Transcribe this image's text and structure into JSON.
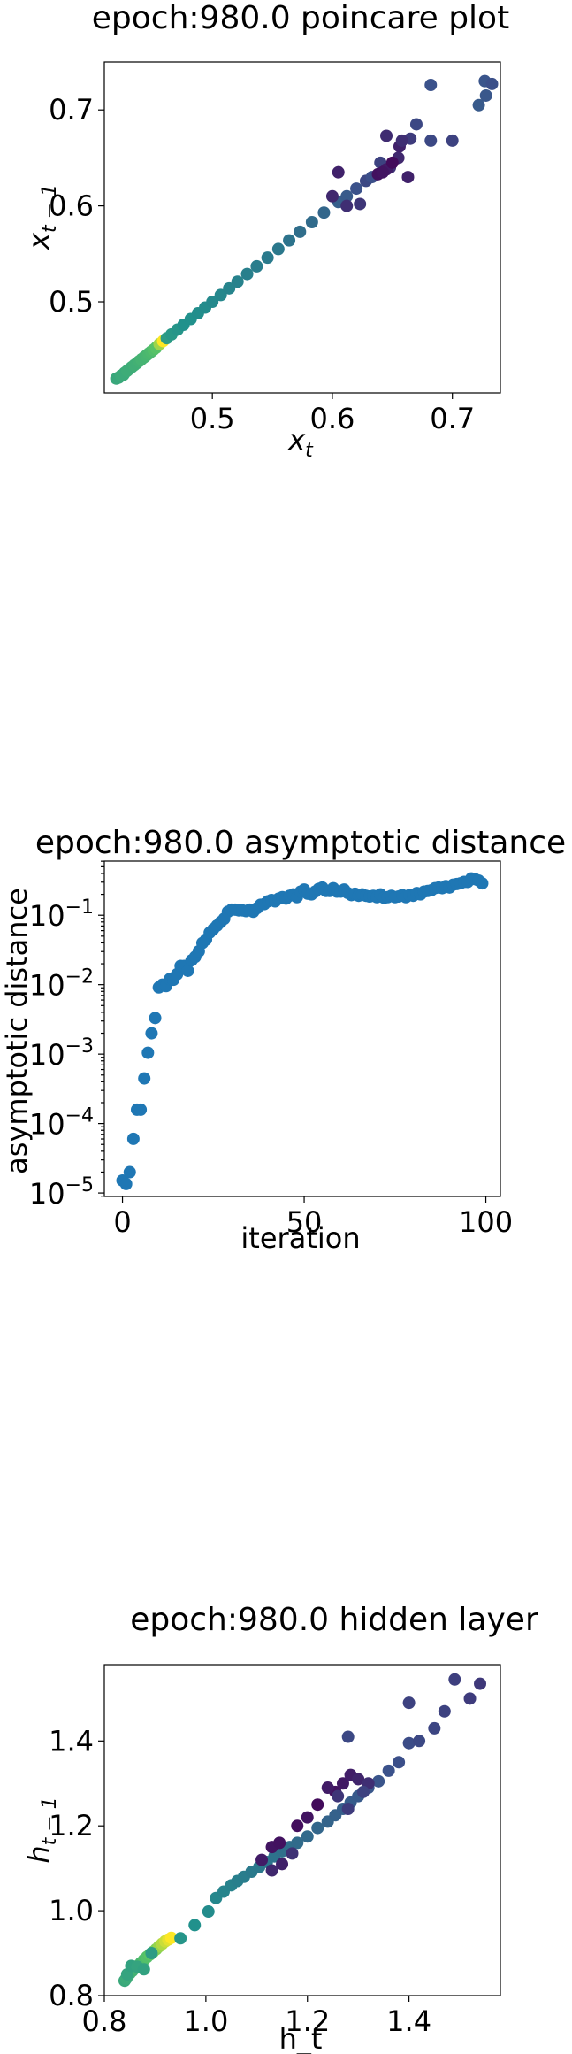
{
  "chart_data": [
    {
      "type": "scatter",
      "title": "epoch:980.0 poincare plot",
      "xlabel_base": "x",
      "xlabel_sub": "t",
      "ylabel_base": "x",
      "ylabel_sub": "t − 1",
      "xlim": [
        0.41,
        0.74
      ],
      "ylim": [
        0.405,
        0.75
      ],
      "xticks": [
        0.5,
        0.6,
        0.7
      ],
      "xtick_labels": [
        "0.5",
        "0.6",
        "0.7"
      ],
      "yticks": [
        0.5,
        0.6,
        0.7
      ],
      "ytick_labels": [
        "0.5",
        "0.6",
        "0.7"
      ],
      "colormap": [
        "#440154",
        "#3b528b",
        "#21918c",
        "#5ec962",
        "#fde725"
      ],
      "points": [
        [
          0.42,
          0.42,
          0.6
        ],
        [
          0.422,
          0.421,
          0.6
        ],
        [
          0.424,
          0.423,
          0.61
        ],
        [
          0.426,
          0.424,
          0.61
        ],
        [
          0.427,
          0.426,
          0.61
        ],
        [
          0.429,
          0.428,
          0.62
        ],
        [
          0.431,
          0.43,
          0.62
        ],
        [
          0.433,
          0.432,
          0.62
        ],
        [
          0.435,
          0.434,
          0.63
        ],
        [
          0.437,
          0.436,
          0.63
        ],
        [
          0.439,
          0.438,
          0.64
        ],
        [
          0.441,
          0.44,
          0.65
        ],
        [
          0.443,
          0.442,
          0.65
        ],
        [
          0.445,
          0.444,
          0.66
        ],
        [
          0.447,
          0.446,
          0.67
        ],
        [
          0.449,
          0.448,
          0.68
        ],
        [
          0.451,
          0.45,
          0.7
        ],
        [
          0.453,
          0.452,
          0.72
        ],
        [
          0.456,
          0.456,
          0.85
        ],
        [
          0.459,
          0.459,
          1.0
        ],
        [
          0.462,
          0.462,
          0.55
        ],
        [
          0.466,
          0.466,
          0.53
        ],
        [
          0.471,
          0.471,
          0.52
        ],
        [
          0.476,
          0.476,
          0.5
        ],
        [
          0.482,
          0.482,
          0.5
        ],
        [
          0.488,
          0.488,
          0.49
        ],
        [
          0.494,
          0.494,
          0.48
        ],
        [
          0.5,
          0.5,
          0.47
        ],
        [
          0.507,
          0.507,
          0.46
        ],
        [
          0.514,
          0.514,
          0.45
        ],
        [
          0.521,
          0.521,
          0.44
        ],
        [
          0.529,
          0.529,
          0.43
        ],
        [
          0.537,
          0.537,
          0.42
        ],
        [
          0.546,
          0.546,
          0.41
        ],
        [
          0.555,
          0.555,
          0.4
        ],
        [
          0.564,
          0.564,
          0.38
        ],
        [
          0.573,
          0.573,
          0.36
        ],
        [
          0.583,
          0.583,
          0.35
        ],
        [
          0.593,
          0.593,
          0.33
        ],
        [
          0.605,
          0.604,
          0.3
        ],
        [
          0.612,
          0.61,
          0.28
        ],
        [
          0.62,
          0.618,
          0.25
        ],
        [
          0.628,
          0.626,
          0.22
        ],
        [
          0.633,
          0.63,
          0.24
        ],
        [
          0.64,
          0.645,
          0.2
        ],
        [
          0.648,
          0.64,
          0.15
        ],
        [
          0.655,
          0.65,
          0.12
        ],
        [
          0.645,
          0.638,
          0.08
        ],
        [
          0.638,
          0.633,
          0.05
        ],
        [
          0.65,
          0.645,
          0.03
        ],
        [
          0.642,
          0.635,
          0.06
        ],
        [
          0.656,
          0.662,
          0.1
        ],
        [
          0.665,
          0.67,
          0.18
        ],
        [
          0.67,
          0.685,
          0.22
        ],
        [
          0.682,
          0.726,
          0.25
        ],
        [
          0.7,
          0.668,
          0.2
        ],
        [
          0.722,
          0.705,
          0.28
        ],
        [
          0.727,
          0.73,
          0.26
        ],
        [
          0.733,
          0.727,
          0.24
        ],
        [
          0.728,
          0.715,
          0.27
        ],
        [
          0.605,
          0.635,
          0.1
        ],
        [
          0.6,
          0.61,
          0.12
        ],
        [
          0.612,
          0.6,
          0.14
        ],
        [
          0.623,
          0.602,
          0.16
        ],
        [
          0.645,
          0.673,
          0.13
        ],
        [
          0.658,
          0.668,
          0.14
        ],
        [
          0.663,
          0.63,
          0.1
        ],
        [
          0.682,
          0.668,
          0.22
        ]
      ]
    },
    {
      "type": "scatter",
      "title": "epoch:980.0 asymptotic distance",
      "xlabel": "iteration",
      "ylabel": "asymptotic distance",
      "yscale": "log",
      "xlim": [
        -5,
        104
      ],
      "ylim_log10": [
        -5.05,
        -0.22
      ],
      "xticks": [
        0,
        50,
        100
      ],
      "xtick_labels": [
        "0",
        "50",
        "100"
      ],
      "yticks_log10": [
        -5,
        -4,
        -3,
        -2,
        -1
      ],
      "ytick_base": "10",
      "ytick_exponents": [
        "−5",
        "−4",
        "−3",
        "−2",
        "−1"
      ],
      "color": "#1f77b4",
      "x": [
        0,
        1,
        2,
        3,
        4,
        5,
        6,
        7,
        8,
        9,
        10,
        11,
        12,
        13,
        14,
        15,
        16,
        17,
        18,
        19,
        20,
        21,
        22,
        23,
        24,
        25,
        26,
        27,
        28,
        29,
        30,
        31,
        32,
        33,
        34,
        35,
        36,
        37,
        38,
        39,
        40,
        41,
        42,
        43,
        44,
        45,
        46,
        47,
        48,
        49,
        50,
        51,
        52,
        53,
        54,
        55,
        56,
        57,
        58,
        59,
        60,
        61,
        62,
        63,
        64,
        65,
        66,
        67,
        68,
        69,
        70,
        71,
        72,
        73,
        74,
        75,
        76,
        77,
        78,
        79,
        80,
        81,
        82,
        83,
        84,
        85,
        86,
        87,
        88,
        89,
        90,
        91,
        92,
        93,
        94,
        95,
        96,
        97,
        98,
        99
      ],
      "y_log10": [
        -4.82,
        -4.87,
        -4.7,
        -4.22,
        -3.8,
        -3.8,
        -3.35,
        -2.98,
        -2.7,
        -2.48,
        -2.04,
        -2.0,
        -2.02,
        -1.92,
        -1.93,
        -1.85,
        -1.73,
        -1.73,
        -1.8,
        -1.65,
        -1.6,
        -1.52,
        -1.4,
        -1.35,
        -1.25,
        -1.2,
        -1.15,
        -1.1,
        -1.05,
        -0.95,
        -0.92,
        -0.92,
        -0.93,
        -0.93,
        -0.94,
        -0.92,
        -0.95,
        -0.9,
        -0.85,
        -0.84,
        -0.8,
        -0.78,
        -0.8,
        -0.76,
        -0.74,
        -0.76,
        -0.72,
        -0.7,
        -0.74,
        -0.66,
        -0.63,
        -0.69,
        -0.7,
        -0.66,
        -0.62,
        -0.6,
        -0.65,
        -0.65,
        -0.61,
        -0.66,
        -0.66,
        -0.63,
        -0.68,
        -0.71,
        -0.69,
        -0.72,
        -0.7,
        -0.72,
        -0.73,
        -0.72,
        -0.74,
        -0.7,
        -0.75,
        -0.74,
        -0.72,
        -0.74,
        -0.73,
        -0.71,
        -0.74,
        -0.71,
        -0.72,
        -0.68,
        -0.7,
        -0.66,
        -0.65,
        -0.64,
        -0.61,
        -0.6,
        -0.61,
        -0.58,
        -0.6,
        -0.56,
        -0.55,
        -0.54,
        -0.52,
        -0.52,
        -0.47,
        -0.48,
        -0.5,
        -0.54
      ]
    },
    {
      "type": "scatter",
      "title": "epoch:980.0 hidden layer",
      "xlabel": "h_t",
      "ylabel_base": "h",
      "ylabel_sub": "t − 1",
      "xlim": [
        0.8,
        1.58
      ],
      "ylim": [
        0.8,
        1.58
      ],
      "xticks": [
        0.8,
        1.0,
        1.2,
        1.4
      ],
      "xtick_labels": [
        "0.8",
        "1.0",
        "1.2",
        "1.4"
      ],
      "yticks": [
        0.8,
        1.0,
        1.2,
        1.4
      ],
      "ytick_labels": [
        "0.8",
        "1.0",
        "1.2",
        "1.4"
      ],
      "colormap": [
        "#440154",
        "#3b528b",
        "#21918c",
        "#5ec962",
        "#fde725"
      ],
      "points": [
        [
          0.84,
          0.835,
          0.6
        ],
        [
          0.843,
          0.84,
          0.61
        ],
        [
          0.846,
          0.846,
          0.62
        ],
        [
          0.85,
          0.852,
          0.63
        ],
        [
          0.855,
          0.858,
          0.64
        ],
        [
          0.86,
          0.864,
          0.65
        ],
        [
          0.866,
          0.87,
          0.66
        ],
        [
          0.872,
          0.877,
          0.67
        ],
        [
          0.878,
          0.884,
          0.69
        ],
        [
          0.884,
          0.891,
          0.71
        ],
        [
          0.89,
          0.897,
          0.73
        ],
        [
          0.896,
          0.903,
          0.76
        ],
        [
          0.902,
          0.909,
          0.8
        ],
        [
          0.908,
          0.916,
          0.84
        ],
        [
          0.914,
          0.922,
          0.88
        ],
        [
          0.92,
          0.928,
          0.92
        ],
        [
          0.926,
          0.932,
          0.96
        ],
        [
          0.932,
          0.936,
          1.0
        ],
        [
          0.845,
          0.85,
          0.58
        ],
        [
          0.853,
          0.87,
          0.57
        ],
        [
          0.865,
          0.868,
          0.58
        ],
        [
          0.878,
          0.862,
          0.57
        ],
        [
          0.893,
          0.9,
          0.55
        ],
        [
          0.95,
          0.935,
          0.52
        ],
        [
          0.978,
          0.966,
          0.5
        ],
        [
          1.005,
          0.998,
          0.48
        ],
        [
          1.02,
          1.03,
          0.46
        ],
        [
          1.035,
          1.045,
          0.45
        ],
        [
          1.05,
          1.06,
          0.44
        ],
        [
          1.062,
          1.07,
          0.43
        ],
        [
          1.075,
          1.08,
          0.42
        ],
        [
          1.09,
          1.092,
          0.41
        ],
        [
          1.105,
          1.103,
          0.4
        ],
        [
          1.12,
          1.115,
          0.39
        ],
        [
          1.135,
          1.128,
          0.38
        ],
        [
          1.15,
          1.14,
          0.37
        ],
        [
          1.165,
          1.15,
          0.36
        ],
        [
          1.18,
          1.16,
          0.35
        ],
        [
          1.2,
          1.175,
          0.34
        ],
        [
          1.22,
          1.195,
          0.33
        ],
        [
          1.24,
          1.21,
          0.32
        ],
        [
          1.255,
          1.225,
          0.31
        ],
        [
          1.27,
          1.24,
          0.3
        ],
        [
          1.285,
          1.255,
          0.29
        ],
        [
          1.3,
          1.27,
          0.28
        ],
        [
          1.32,
          1.29,
          0.27
        ],
        [
          1.34,
          1.305,
          0.26
        ],
        [
          1.36,
          1.33,
          0.25
        ],
        [
          1.38,
          1.35,
          0.24
        ],
        [
          1.4,
          1.395,
          0.23
        ],
        [
          1.42,
          1.4,
          0.22
        ],
        [
          1.45,
          1.43,
          0.21
        ],
        [
          1.47,
          1.47,
          0.2
        ],
        [
          1.49,
          1.545,
          0.19
        ],
        [
          1.52,
          1.5,
          0.18
        ],
        [
          1.54,
          1.535,
          0.17
        ],
        [
          1.4,
          1.49,
          0.2
        ],
        [
          1.28,
          1.41,
          0.22
        ],
        [
          1.11,
          1.12,
          0.08
        ],
        [
          1.13,
          1.15,
          0.06
        ],
        [
          1.145,
          1.16,
          0.05
        ],
        [
          1.18,
          1.2,
          0.04
        ],
        [
          1.2,
          1.22,
          0.06
        ],
        [
          1.22,
          1.25,
          0.03
        ],
        [
          1.255,
          1.28,
          0.05
        ],
        [
          1.27,
          1.3,
          0.07
        ],
        [
          1.285,
          1.32,
          0.09
        ],
        [
          1.3,
          1.31,
          0.11
        ],
        [
          1.32,
          1.3,
          0.14
        ],
        [
          1.26,
          1.27,
          0.16
        ],
        [
          1.28,
          1.24,
          0.18
        ],
        [
          1.31,
          1.28,
          0.2
        ],
        [
          1.15,
          1.11,
          0.1
        ],
        [
          1.13,
          1.095,
          0.12
        ],
        [
          1.17,
          1.135,
          0.15
        ],
        [
          1.24,
          1.29,
          0.08
        ]
      ]
    }
  ]
}
